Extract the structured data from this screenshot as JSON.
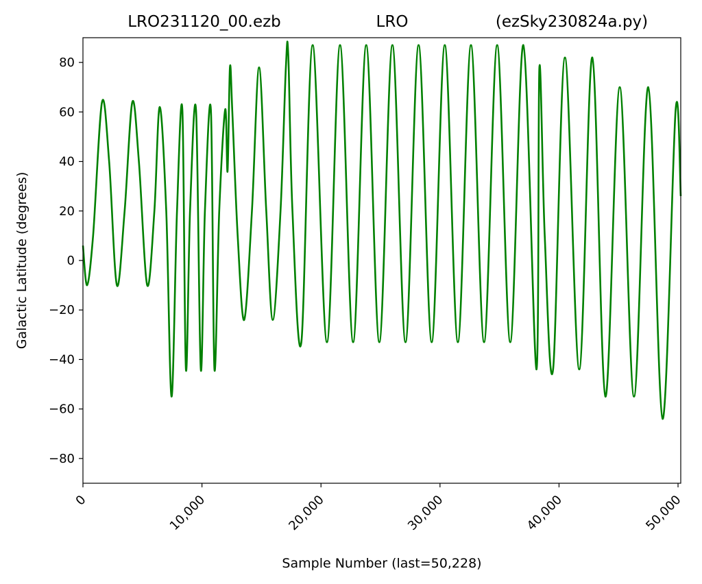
{
  "chart_data": {
    "type": "line",
    "title_parts": [
      "LRO231120_00.ezb",
      "LRO",
      "(ezSky230824a.py)"
    ],
    "xlabel": "Sample Number (last=50,228)",
    "ylabel": "Galactic Latitude (degrees)",
    "xlim": [
      0,
      50228
    ],
    "ylim": [
      -90,
      90
    ],
    "x_ticks": [
      0,
      10000,
      20000,
      30000,
      40000,
      50000
    ],
    "x_tick_labels": [
      "0",
      "10,000",
      "20,000",
      "30,000",
      "40,000",
      "50,000"
    ],
    "y_ticks": [
      80,
      60,
      40,
      20,
      0,
      -20,
      -40,
      -60,
      -80
    ],
    "y_tick_labels": [
      "80",
      "60",
      "40",
      "20",
      "0",
      "−20",
      "−40",
      "−60",
      "−80"
    ],
    "grid": false,
    "line_color": "#008000",
    "series": [
      {
        "x": [
          0,
          350,
          850,
          1600,
          2200,
          2850,
          3500,
          4150,
          4700,
          5400,
          6000,
          6450,
          7000,
          7450,
          7900,
          8350,
          8650,
          9000,
          9500,
          9900,
          10250,
          10750,
          11050,
          11450,
          11950,
          12150,
          12350,
          12550,
          13000,
          13550,
          14200,
          14800,
          15400,
          15950,
          16600,
          17050,
          17250,
          17600,
          18350,
          19300,
          20500,
          21600,
          22700,
          23800,
          24900,
          26000,
          27100,
          28200,
          29300,
          30400,
          31500,
          32600,
          33700,
          34800,
          35900,
          37000,
          38100,
          38350,
          38800,
          39500,
          40500,
          41700,
          42800,
          43900,
          45100,
          46300,
          47500,
          48700,
          49800,
          50228
        ],
        "y": [
          6,
          -10,
          10,
          64,
          40,
          -10,
          20,
          64,
          40,
          -10,
          20,
          62,
          20,
          -55,
          20,
          61,
          -44,
          20,
          61,
          -44,
          20,
          61,
          -44,
          20,
          61,
          36,
          78,
          60,
          10,
          -24,
          20,
          78,
          20,
          -24,
          20,
          78,
          83,
          20,
          -33,
          87,
          -33,
          87,
          -33,
          87,
          -33,
          87,
          -33,
          87,
          -33,
          87,
          -33,
          87,
          -33,
          87,
          -33,
          87,
          -44,
          78,
          10,
          -44,
          82,
          -44,
          82,
          -55,
          70,
          -55,
          70,
          -64,
          61,
          26
        ]
      }
    ]
  }
}
